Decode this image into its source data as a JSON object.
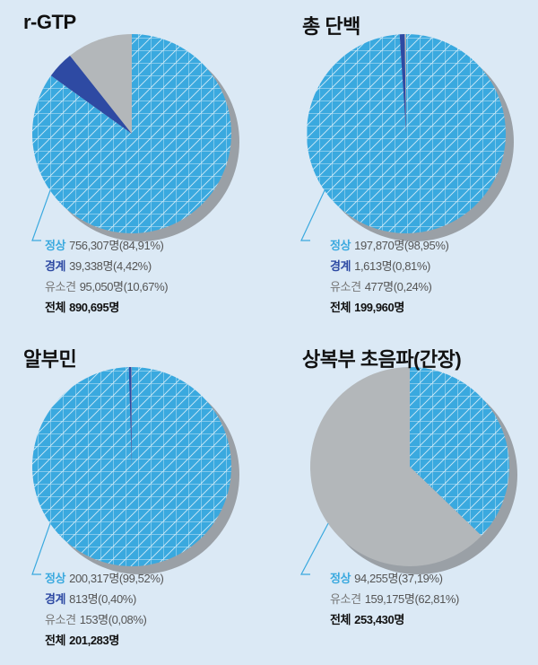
{
  "colors": {
    "normal": "#3aa9df",
    "caution": "#2e4aa3",
    "abnormal": "#b3b7ba",
    "shadow": "#9aa0a6",
    "grid": "#ffffff"
  },
  "chart_data": [
    {
      "type": "pie",
      "title": "r-GTP",
      "slices": [
        {
          "label": "정상",
          "value": 84.91,
          "text": "756,307명(84,91%)",
          "key": "normal"
        },
        {
          "label": "경계",
          "value": 4.42,
          "text": "39,338명(4,42%)",
          "key": "caution"
        },
        {
          "label": "유소견",
          "value": 10.67,
          "text": "95,050명(10,67%)",
          "key": "abnormal"
        }
      ],
      "total_label": "전체",
      "total_text": "890,695명"
    },
    {
      "type": "pie",
      "title": "총 단백",
      "slices": [
        {
          "label": "정상",
          "value": 98.95,
          "text": "197,870명(98,95%)",
          "key": "normal"
        },
        {
          "label": "경계",
          "value": 0.81,
          "text": "1,613명(0,81%)",
          "key": "caution"
        },
        {
          "label": "유소견",
          "value": 0.24,
          "text": "477명(0,24%)",
          "key": "abnormal"
        }
      ],
      "total_label": "전체",
      "total_text": "199,960명"
    },
    {
      "type": "pie",
      "title": "알부민",
      "slices": [
        {
          "label": "정상",
          "value": 99.52,
          "text": "200,317명(99,52%)",
          "key": "normal"
        },
        {
          "label": "경계",
          "value": 0.4,
          "text": "813명(0,40%)",
          "key": "caution"
        },
        {
          "label": "유소견",
          "value": 0.08,
          "text": "153명(0,08%)",
          "key": "abnormal"
        }
      ],
      "total_label": "전체",
      "total_text": "201,283명"
    },
    {
      "type": "pie",
      "title": "상복부 초음파(간장)",
      "slices": [
        {
          "label": "정상",
          "value": 37.19,
          "text": "94,255명(37,19%)",
          "key": "normal"
        },
        {
          "label": "유소견",
          "value": 62.81,
          "text": "159,175명(62,81%)",
          "key": "abnormal"
        }
      ],
      "total_label": "전체",
      "total_text": "253,430명"
    }
  ]
}
